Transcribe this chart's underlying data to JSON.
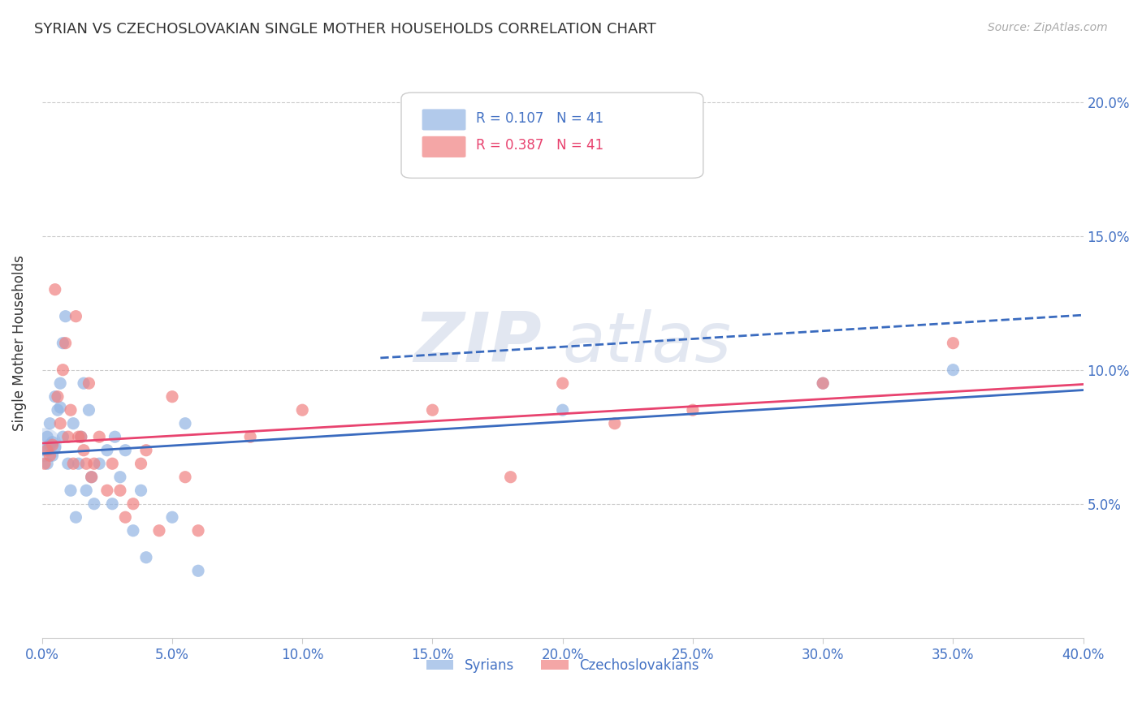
{
  "title": "SYRIAN VS CZECHOSLOVAKIAN SINGLE MOTHER HOUSEHOLDS CORRELATION CHART",
  "source": "Source: ZipAtlas.com",
  "ylabel": "Single Mother Households",
  "xlim": [
    0.0,
    0.4
  ],
  "ylim": [
    0.0,
    0.22
  ],
  "x_ticks": [
    0.0,
    0.05,
    0.1,
    0.15,
    0.2,
    0.25,
    0.3,
    0.35,
    0.4
  ],
  "x_tick_labels": [
    "0.0%",
    "5.0%",
    "10.0%",
    "15.0%",
    "20.0%",
    "25.0%",
    "30.0%",
    "35.0%",
    "40.0%"
  ],
  "y_ticks": [
    0.05,
    0.1,
    0.15,
    0.2
  ],
  "y_tick_labels": [
    "5.0%",
    "10.0%",
    "15.0%",
    "20.0%"
  ],
  "blue_color": "#92b4e3",
  "pink_color": "#f08080",
  "blue_line_color": "#3a6bbf",
  "pink_line_color": "#e8436f",
  "R_blue": 0.107,
  "N_blue": 41,
  "R_pink": 0.387,
  "N_pink": 41,
  "watermark_zip": "ZIP",
  "watermark_atlas": "atlas",
  "legend_label_blue": "Syrians",
  "legend_label_pink": "Czechoslovakians",
  "syrians_x": [
    0.001,
    0.002,
    0.002,
    0.003,
    0.003,
    0.004,
    0.004,
    0.005,
    0.005,
    0.006,
    0.007,
    0.007,
    0.008,
    0.008,
    0.009,
    0.01,
    0.011,
    0.012,
    0.013,
    0.014,
    0.015,
    0.016,
    0.017,
    0.018,
    0.019,
    0.02,
    0.022,
    0.025,
    0.027,
    0.028,
    0.03,
    0.032,
    0.035,
    0.038,
    0.04,
    0.05,
    0.055,
    0.06,
    0.2,
    0.3,
    0.35
  ],
  "syrians_y": [
    0.07,
    0.075,
    0.065,
    0.072,
    0.08,
    0.068,
    0.073,
    0.09,
    0.071,
    0.085,
    0.095,
    0.086,
    0.11,
    0.075,
    0.12,
    0.065,
    0.055,
    0.08,
    0.045,
    0.065,
    0.075,
    0.095,
    0.055,
    0.085,
    0.06,
    0.05,
    0.065,
    0.07,
    0.05,
    0.075,
    0.06,
    0.07,
    0.04,
    0.055,
    0.03,
    0.045,
    0.08,
    0.025,
    0.085,
    0.095,
    0.1
  ],
  "czechoslovakians_x": [
    0.001,
    0.002,
    0.003,
    0.004,
    0.005,
    0.006,
    0.007,
    0.008,
    0.009,
    0.01,
    0.011,
    0.012,
    0.013,
    0.014,
    0.015,
    0.016,
    0.017,
    0.018,
    0.019,
    0.02,
    0.022,
    0.025,
    0.027,
    0.03,
    0.032,
    0.035,
    0.038,
    0.04,
    0.045,
    0.05,
    0.055,
    0.06,
    0.08,
    0.1,
    0.15,
    0.18,
    0.2,
    0.22,
    0.25,
    0.3,
    0.35
  ],
  "czechoslovakians_y": [
    0.065,
    0.07,
    0.068,
    0.072,
    0.13,
    0.09,
    0.08,
    0.1,
    0.11,
    0.075,
    0.085,
    0.065,
    0.12,
    0.075,
    0.075,
    0.07,
    0.065,
    0.095,
    0.06,
    0.065,
    0.075,
    0.055,
    0.065,
    0.055,
    0.045,
    0.05,
    0.065,
    0.07,
    0.04,
    0.09,
    0.06,
    0.04,
    0.075,
    0.085,
    0.085,
    0.06,
    0.095,
    0.08,
    0.085,
    0.095,
    0.11
  ],
  "background_color": "#ffffff",
  "grid_color": "#cccccc",
  "tick_label_color": "#4472c4",
  "title_color": "#333333",
  "ylabel_color": "#333333"
}
